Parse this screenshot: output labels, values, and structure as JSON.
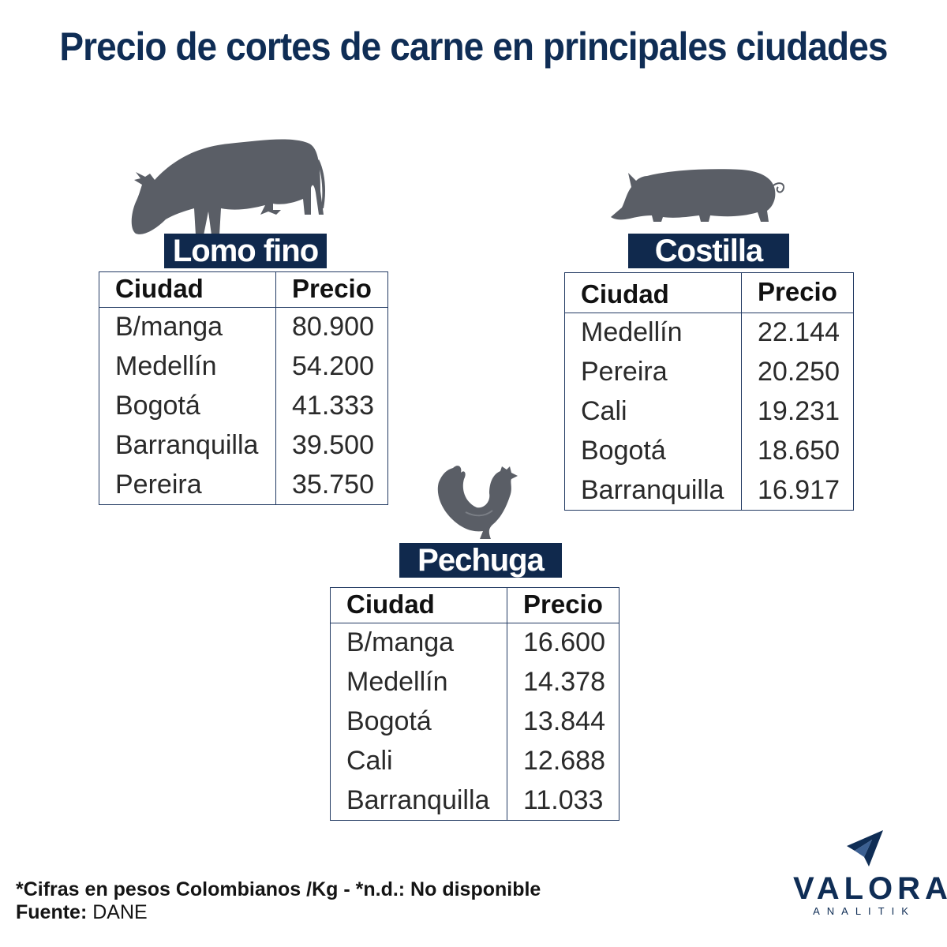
{
  "title": "Precio de cortes de carne en principales ciudades",
  "chart_data": [
    {
      "type": "table",
      "title": "Lomo fino",
      "icon": "cow-icon",
      "columns": [
        "Ciudad",
        "Precio"
      ],
      "rows": [
        {
          "ciudad": "B/manga",
          "precio": "80.900"
        },
        {
          "ciudad": "Medellín",
          "precio": "54.200"
        },
        {
          "ciudad": "Bogotá",
          "precio": "41.333"
        },
        {
          "ciudad": "Barranquilla",
          "precio": "39.500"
        },
        {
          "ciudad": "Pereira",
          "precio": "35.750"
        }
      ]
    },
    {
      "type": "table",
      "title": "Costilla",
      "icon": "pig-icon",
      "columns": [
        "Ciudad",
        "Precio"
      ],
      "rows": [
        {
          "ciudad": "Medellín",
          "precio": "22.144"
        },
        {
          "ciudad": "Pereira",
          "precio": "20.250"
        },
        {
          "ciudad": "Cali",
          "precio": "19.231"
        },
        {
          "ciudad": "Bogotá",
          "precio": "18.650"
        },
        {
          "ciudad": "Barranquilla",
          "precio": "16.917"
        }
      ]
    },
    {
      "type": "table",
      "title": "Pechuga",
      "icon": "chicken-icon",
      "columns": [
        "Ciudad",
        "Precio"
      ],
      "rows": [
        {
          "ciudad": "B/manga",
          "precio": "16.600"
        },
        {
          "ciudad": "Medellín",
          "precio": "14.378"
        },
        {
          "ciudad": "Bogotá",
          "precio": "13.844"
        },
        {
          "ciudad": "Cali",
          "precio": "12.688"
        },
        {
          "ciudad": "Barranquilla",
          "precio": "11.033"
        }
      ]
    }
  ],
  "footnote": {
    "line1": "*Cifras en pesos Colombianos /Kg - *n.d.: No disponible",
    "source_label": "Fuente:",
    "source_value": "DANE"
  },
  "logo": {
    "word": "VALORA",
    "sub": "ANALITIK"
  },
  "colors": {
    "title": "#0f2d55",
    "label_bg": "#10294d",
    "border": "#233b63",
    "animal": "#5a5e66"
  }
}
